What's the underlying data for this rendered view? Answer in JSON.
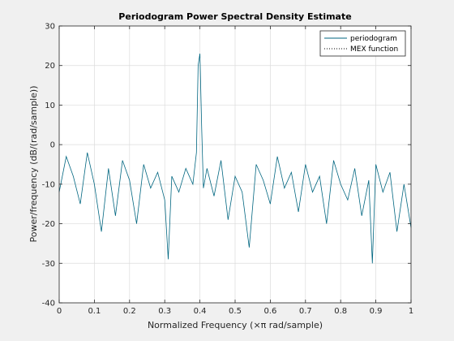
{
  "chart_data": {
    "type": "line",
    "title": "Periodogram Power Spectral Density Estimate",
    "xlabel": "Normalized Frequency  (×π rad/sample)",
    "ylabel": "Power/frequency (dB/(rad/sample))",
    "xlim": [
      0,
      1
    ],
    "ylim": [
      -40,
      30
    ],
    "xticks": [
      "0",
      "0.1",
      "0.2",
      "0.3",
      "0.4",
      "0.5",
      "0.6",
      "0.7",
      "0.8",
      "0.9",
      "1"
    ],
    "yticks": [
      "-40",
      "-30",
      "-20",
      "-10",
      "0",
      "10",
      "20",
      "30"
    ],
    "grid": true,
    "legend_position": "top-right",
    "series": [
      {
        "name": "periodogram",
        "color": "#006680",
        "style": "solid",
        "x": [
          0,
          0.02,
          0.04,
          0.06,
          0.08,
          0.1,
          0.12,
          0.14,
          0.16,
          0.18,
          0.2,
          0.22,
          0.24,
          0.26,
          0.28,
          0.3,
          0.31,
          0.32,
          0.34,
          0.36,
          0.38,
          0.39,
          0.395,
          0.4,
          0.405,
          0.41,
          0.42,
          0.44,
          0.46,
          0.48,
          0.5,
          0.52,
          0.54,
          0.56,
          0.58,
          0.6,
          0.62,
          0.64,
          0.66,
          0.68,
          0.7,
          0.72,
          0.74,
          0.76,
          0.78,
          0.8,
          0.82,
          0.84,
          0.86,
          0.88,
          0.89,
          0.9,
          0.92,
          0.94,
          0.96,
          0.98,
          1
        ],
        "y": [
          -12,
          -3,
          -8,
          -15,
          -2,
          -10,
          -22,
          -6,
          -18,
          -4,
          -9,
          -20,
          -5,
          -11,
          -7,
          -14,
          -29,
          -8,
          -12,
          -6,
          -10,
          -2,
          20,
          23,
          4,
          -11,
          -6,
          -13,
          -4,
          -19,
          -8,
          -12,
          -26,
          -5,
          -9,
          -15,
          -3,
          -11,
          -7,
          -17,
          -5,
          -12,
          -8,
          -20,
          -4,
          -10,
          -14,
          -6,
          -18,
          -9,
          -30,
          -5,
          -12,
          -7,
          -22,
          -10,
          -21
        ]
      },
      {
        "name": "MEX function",
        "color": "#000000",
        "style": "dotted",
        "x": [],
        "y": []
      }
    ]
  }
}
